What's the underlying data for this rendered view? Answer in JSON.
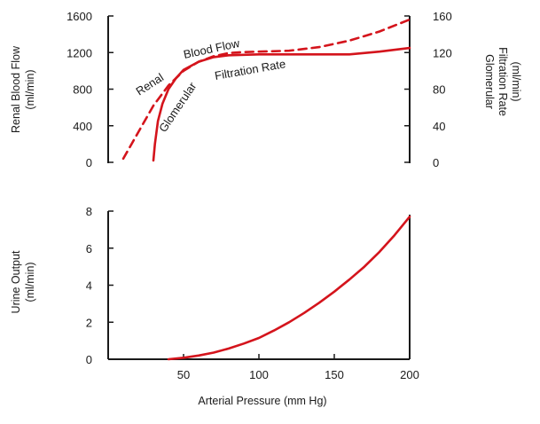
{
  "colors": {
    "series": "#d4141c",
    "axis": "#1a1a1a",
    "background": "#ffffff"
  },
  "chart_data": [
    {
      "type": "line",
      "title": "",
      "xlabel": "",
      "ylabel": "Renal Blood Flow (ml/min)",
      "y2label": "Glomerular Filtration Rate (ml/min)",
      "xlim": [
        0,
        200
      ],
      "ylim": [
        0,
        1600
      ],
      "y2lim": [
        0,
        160
      ],
      "yticks": [
        "0",
        "400",
        "800",
        "1200",
        "1600"
      ],
      "y2ticks": [
        "0",
        "40",
        "80",
        "120",
        "160"
      ],
      "grid": false,
      "series": [
        {
          "name": "Renal Blood Flow",
          "style": "dashed",
          "axis": "left",
          "x": [
            10,
            20,
            30,
            40,
            50,
            60,
            70,
            80,
            90,
            100,
            120,
            140,
            160,
            180,
            200
          ],
          "y": [
            40,
            330,
            620,
            840,
            1000,
            1100,
            1160,
            1195,
            1205,
            1210,
            1220,
            1260,
            1330,
            1430,
            1560
          ]
        },
        {
          "name": "Glomerular Filtration Rate",
          "style": "solid",
          "axis": "right",
          "x": [
            30,
            31,
            33,
            36,
            40,
            45,
            50,
            60,
            70,
            80,
            100,
            120,
            140,
            160,
            180,
            200
          ],
          "y": [
            2,
            20,
            45,
            64,
            80,
            92,
            101,
            110,
            115,
            117,
            118,
            118,
            118,
            118,
            121,
            125
          ]
        }
      ]
    },
    {
      "type": "line",
      "title": "",
      "xlabel": "Arterial Pressure (mm Hg)",
      "ylabel": "Urine Output (ml/min)",
      "xlim": [
        0,
        200
      ],
      "ylim": [
        0,
        8
      ],
      "xticks": [
        "50",
        "100",
        "150",
        "200"
      ],
      "yticks": [
        "0",
        "2",
        "4",
        "6",
        "8"
      ],
      "grid": false,
      "series": [
        {
          "name": "",
          "style": "solid",
          "x": [
            40,
            50,
            60,
            70,
            80,
            90,
            100,
            110,
            120,
            130,
            140,
            150,
            160,
            170,
            180,
            190,
            200
          ],
          "y": [
            0,
            0.08,
            0.2,
            0.36,
            0.58,
            0.85,
            1.15,
            1.55,
            2.0,
            2.5,
            3.05,
            3.65,
            4.3,
            5.0,
            5.8,
            6.7,
            7.7
          ]
        }
      ]
    }
  ]
}
